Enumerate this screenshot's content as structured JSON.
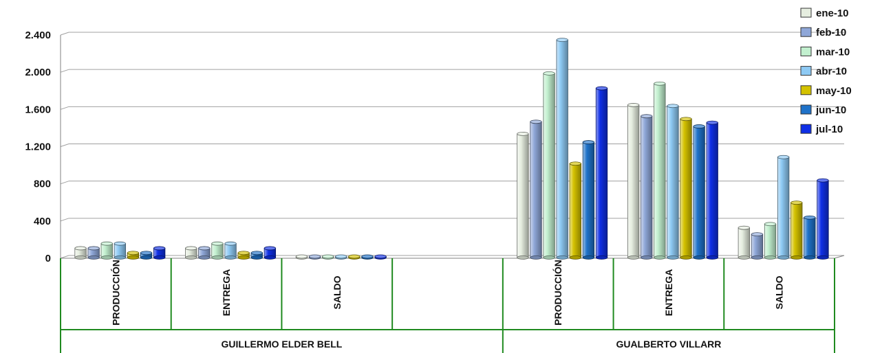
{
  "chart_data": {
    "type": "bar",
    "title": "",
    "xlabel": "",
    "ylabel": "",
    "ylim": [
      0,
      2400
    ],
    "yticks": [
      0,
      400,
      800,
      1200,
      1600,
      2000,
      2400
    ],
    "ytick_labels": [
      "0",
      "400",
      "800",
      "1.200",
      "1.600",
      "2.000",
      "2.400"
    ],
    "grid": true,
    "legend_position": "top-right",
    "groups": [
      {
        "label": "GUILLERMO ELDER BELL",
        "categories": [
          "PRODUCCIÓN",
          "ENTREGA",
          "SALDO",
          ""
        ]
      },
      {
        "label": "GUALBERTO VILLARR",
        "categories": [
          "PRODUCCIÓN",
          "ENTREGA",
          "SALDO"
        ]
      }
    ],
    "categories": [
      "PRODUCCIÓN",
      "ENTREGA",
      "SALDO",
      "",
      "PRODUCCIÓN",
      "ENTREGA",
      "SALDO"
    ],
    "series": [
      {
        "name": "ene-10",
        "color": "#e6eee0",
        "values": [
          100,
          100,
          5,
          0,
          1330,
          1640,
          320
        ]
      },
      {
        "name": "feb-10",
        "color": "#8fa7d8",
        "values": [
          100,
          100,
          5,
          0,
          1460,
          1520,
          250
        ]
      },
      {
        "name": "mar-10",
        "color": "#c2f0cf",
        "values": [
          150,
          150,
          5,
          0,
          1980,
          1870,
          360
        ]
      },
      {
        "name": "abr-10",
        "color": "#8ecaf4",
        "values": [
          150,
          150,
          5,
          0,
          2340,
          1630,
          1080
        ]
      },
      {
        "name": "may-10",
        "color": "#d4c200",
        "values": [
          50,
          50,
          5,
          0,
          1010,
          1490,
          590
        ]
      },
      {
        "name": "jun-10",
        "color": "#1f72c9",
        "values": [
          50,
          50,
          5,
          0,
          1240,
          1410,
          430
        ]
      },
      {
        "name": "jul-10",
        "color": "#0f2fe6",
        "values": [
          100,
          100,
          5,
          0,
          1820,
          1450,
          830
        ]
      }
    ]
  }
}
